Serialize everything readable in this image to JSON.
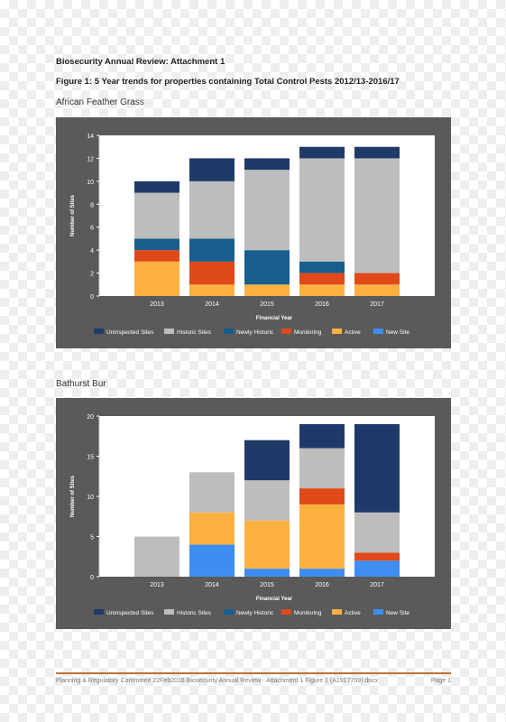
{
  "document": {
    "title": "Biosecurity Annual Review: Attachment 1",
    "figure_title": "Figure 1: 5 Year trends for properties containing Total Control Pests 2012/13-2016/17"
  },
  "sections": [
    {
      "title": "African Feather Grass"
    },
    {
      "title": "Bathurst Bur"
    }
  ],
  "footer": {
    "left": "Planning & Regulatory Committee 22Feb2018 Biosecurity Annual Review - Attachment 1 Figure 1 (A1917759).docx",
    "right": "Page 1"
  },
  "colors": {
    "Uninspected Sites": "#1f3a68",
    "Historic Sites": "#bdbdbd",
    "Newly Historic": "#175e8e",
    "Monitoring": "#e04a1a",
    "Active": "#fbb040",
    "New Site": "#3d8ef0"
  },
  "chart_data": [
    {
      "type": "bar",
      "stacked": true,
      "categories": [
        "2013",
        "2014",
        "2015",
        "2016",
        "2017"
      ],
      "xlabel": "Financial Year",
      "ylabel": "Number of Sites",
      "ylim": [
        0,
        14
      ],
      "yticks": [
        0,
        2,
        4,
        6,
        8,
        10,
        12,
        14
      ],
      "legend_position": "bottom",
      "grid": false,
      "series": [
        {
          "name": "New Site",
          "values": [
            0,
            0,
            0,
            0,
            0
          ]
        },
        {
          "name": "Active",
          "values": [
            3,
            1,
            1,
            1,
            1
          ]
        },
        {
          "name": "Monitoring",
          "values": [
            1,
            2,
            0,
            1,
            1
          ]
        },
        {
          "name": "Newly Historic",
          "values": [
            1,
            2,
            3,
            1,
            0
          ]
        },
        {
          "name": "Historic Sites",
          "values": [
            4,
            5,
            7,
            9,
            10
          ]
        },
        {
          "name": "Uninspected Sites",
          "values": [
            1,
            2,
            1,
            1,
            1
          ]
        }
      ]
    },
    {
      "type": "bar",
      "stacked": true,
      "categories": [
        "2013",
        "2014",
        "2015",
        "2016",
        "2017"
      ],
      "xlabel": "Financial Year",
      "ylabel": "Number of Sites",
      "ylim": [
        0,
        20
      ],
      "yticks": [
        0,
        5,
        10,
        15,
        20
      ],
      "legend_position": "bottom",
      "grid": false,
      "series": [
        {
          "name": "New Site",
          "values": [
            0,
            4,
            1,
            1,
            2
          ]
        },
        {
          "name": "Active",
          "values": [
            0,
            4,
            6,
            8,
            0
          ]
        },
        {
          "name": "Monitoring",
          "values": [
            0,
            0,
            0,
            2,
            1
          ]
        },
        {
          "name": "Newly Historic",
          "values": [
            0,
            0,
            0,
            0,
            0
          ]
        },
        {
          "name": "Historic Sites",
          "values": [
            5,
            5,
            5,
            5,
            5
          ]
        },
        {
          "name": "Uninspected Sites",
          "values": [
            0,
            0,
            5,
            3,
            11
          ]
        }
      ]
    }
  ]
}
